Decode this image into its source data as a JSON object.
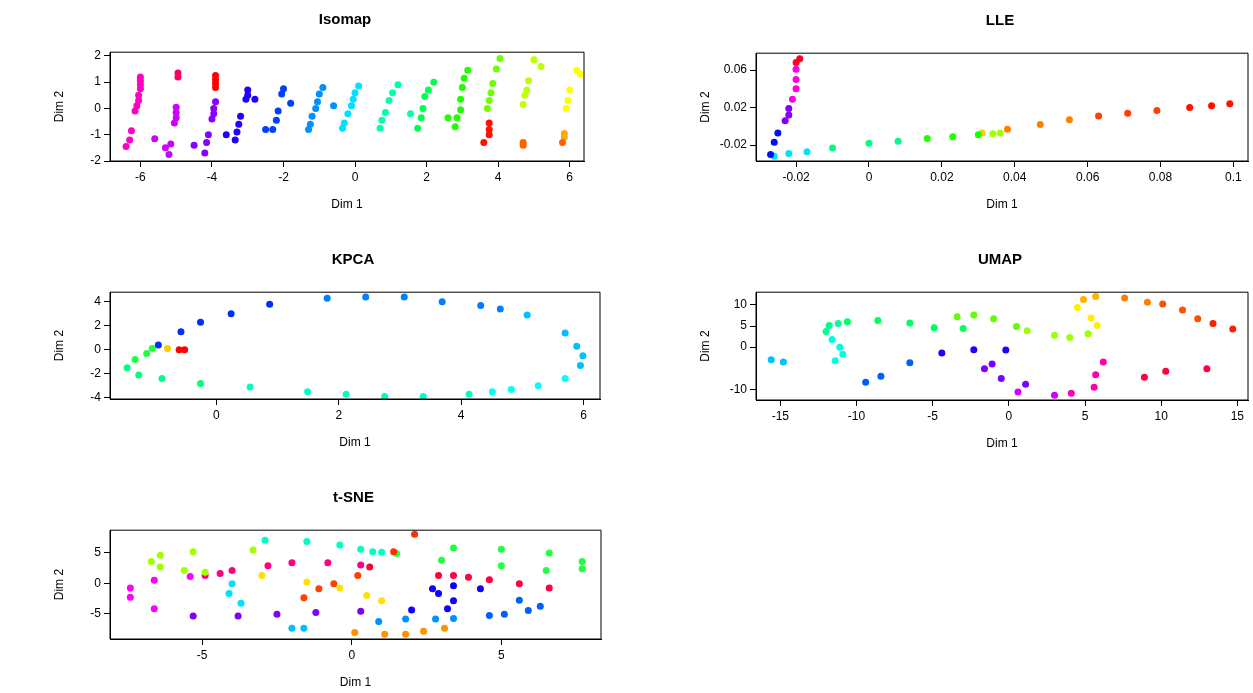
{
  "chart_data": [
    {
      "type": "scatter",
      "title": "Isomap",
      "xlabel": "Dim 1",
      "ylabel": "Dim 2",
      "marker": "circle",
      "xlim": [
        -6.85,
        6.4
      ],
      "ylim": [
        -2.0,
        2.14
      ],
      "xticks": [
        -6,
        -4,
        -2,
        0,
        2,
        4,
        6
      ],
      "yticks": [
        -2,
        -1,
        0,
        1,
        2
      ],
      "series": [
        {
          "color": "#ff00c0",
          "x": [
            -6,
            -6,
            -6,
            -6,
            -6.05,
            -6.05,
            -6.1,
            -6.15,
            -6.25,
            -6.3,
            -6.4
          ],
          "values": [
            1.2,
            1.05,
            0.9,
            0.75,
            0.5,
            0.3,
            0.1,
            -0.1,
            -0.85,
            -1.2,
            -1.45
          ]
        },
        {
          "color": "#ff0060",
          "x": [
            -4.95,
            -4.95
          ],
          "values": [
            1.35,
            1.2
          ]
        },
        {
          "color": "#cc00ff",
          "x": [
            -5.6,
            -5.3,
            -5.2,
            -5.15,
            -5.0,
            -5.0,
            -5.0,
            -5.05
          ],
          "values": [
            -1.15,
            -1.5,
            -1.75,
            -1.35,
            0.05,
            -0.15,
            -0.35,
            -0.55
          ]
        },
        {
          "color": "#ff0000",
          "x": [
            -3.9,
            -3.9,
            -3.9,
            -3.9
          ],
          "values": [
            1.25,
            1.1,
            0.95,
            0.8
          ]
        },
        {
          "color": "#8800ff",
          "x": [
            -3.9,
            -3.95,
            -3.95,
            -4.0,
            -4.1,
            -4.15,
            -4.2,
            -4.5
          ],
          "values": [
            0.25,
            0.0,
            -0.2,
            -0.4,
            -1.0,
            -1.3,
            -1.7,
            -1.4
          ]
        },
        {
          "color": "#2200ff",
          "x": [
            -3.0,
            -3.0,
            -3.05,
            -2.8,
            -3.2,
            -3.25,
            -3.3,
            -3.35,
            -3.6
          ],
          "values": [
            0.7,
            0.5,
            0.35,
            0.35,
            -0.3,
            -0.6,
            -0.9,
            -1.2,
            -1.0
          ]
        },
        {
          "color": "#0040ff",
          "x": [
            -2.0,
            -2.05,
            -1.8,
            -2.15,
            -2.2,
            -2.3,
            -2.5
          ],
          "values": [
            0.75,
            0.55,
            0.2,
            -0.1,
            -0.45,
            -0.8,
            -0.8
          ]
        },
        {
          "color": "#0090ff",
          "x": [
            -0.9,
            -1.0,
            -1.05,
            -0.6,
            -1.1,
            -1.2,
            -1.25,
            -1.3
          ],
          "values": [
            0.8,
            0.55,
            0.25,
            0.1,
            0.0,
            -0.3,
            -0.6,
            -0.8
          ]
        },
        {
          "color": "#00e0ff",
          "x": [
            0.1,
            0.0,
            -0.05,
            -0.1,
            -0.2,
            -0.3,
            -0.35
          ],
          "values": [
            0.85,
            0.6,
            0.35,
            0.1,
            -0.2,
            -0.55,
            -0.75
          ]
        },
        {
          "color": "#00ffb0",
          "x": [
            1.2,
            1.05,
            0.95,
            0.85,
            0.75,
            0.7,
            1.55
          ],
          "values": [
            0.9,
            0.6,
            0.3,
            -0.15,
            -0.45,
            -0.75,
            -0.2
          ]
        },
        {
          "color": "#00ff50",
          "x": [
            2.2,
            2.05,
            1.95,
            1.9,
            1.85,
            1.75
          ],
          "values": [
            1.0,
            0.7,
            0.45,
            0.0,
            -0.35,
            -0.75
          ]
        },
        {
          "color": "#20ff00",
          "x": [
            3.15,
            3.05,
            3.0,
            2.95,
            2.95,
            2.85,
            2.8,
            2.6
          ],
          "values": [
            1.45,
            1.15,
            0.8,
            0.35,
            -0.05,
            -0.35,
            -0.7,
            -0.35
          ]
        },
        {
          "color": "#70ff00",
          "x": [
            4.05,
            3.95,
            3.85,
            3.8,
            3.75,
            3.7
          ],
          "values": [
            1.9,
            1.5,
            0.95,
            0.6,
            0.3,
            0.0
          ]
        },
        {
          "color": "#c0ff00",
          "x": [
            5.0,
            5.2,
            4.85,
            4.8,
            4.75,
            4.7
          ],
          "values": [
            1.85,
            1.6,
            1.05,
            0.7,
            0.5,
            0.15
          ]
        },
        {
          "color": "#ffff00",
          "x": [
            6.2,
            6.3,
            6.0,
            5.95,
            5.9
          ],
          "values": [
            1.45,
            1.3,
            0.7,
            0.3,
            0.0
          ]
        },
        {
          "color": "#ff1000",
          "x": [
            3.75,
            3.75,
            3.75,
            3.6
          ],
          "values": [
            -0.55,
            -0.8,
            -1.0,
            -1.3
          ]
        },
        {
          "color": "#ff6000",
          "x": [
            4.7,
            4.7,
            5.8
          ],
          "values": [
            -1.3,
            -1.4,
            -1.3
          ]
        },
        {
          "color": "#ffaa00",
          "x": [
            5.85,
            5.85
          ],
          "values": [
            -0.95,
            -1.1
          ]
        }
      ]
    },
    {
      "type": "scatter",
      "title": "LLE",
      "xlabel": "Dim 1",
      "ylabel": "Dim 2",
      "marker": "circle",
      "xlim": [
        -0.031,
        0.104
      ],
      "ylim": [
        -0.037,
        0.078
      ],
      "xticks": [
        -0.02,
        0.0,
        0.02,
        0.04,
        0.06,
        0.08,
        0.1
      ],
      "yticks": [
        {
          "value": -0.02,
          "label": "-0.02"
        },
        {
          "value": 0.02,
          "label": "0.02"
        },
        {
          "value": 0.06,
          "label": "0.06"
        }
      ],
      "series": [
        {
          "color": "#ff0020",
          "x": [
            -0.019,
            -0.02
          ],
          "values": [
            0.072,
            0.068
          ]
        },
        {
          "color": "#ff00e0",
          "x": [
            -0.02,
            -0.02,
            -0.02,
            -0.021
          ],
          "values": [
            0.061,
            0.05,
            0.04,
            0.029
          ]
        },
        {
          "color": "#8000ff",
          "x": [
            -0.022,
            -0.022,
            -0.023
          ],
          "values": [
            0.019,
            0.012,
            0.006
          ]
        },
        {
          "color": "#0010ff",
          "x": [
            -0.025,
            -0.026,
            -0.027
          ],
          "values": [
            -0.007,
            -0.017,
            -0.03
          ]
        },
        {
          "color": "#00e0ff",
          "x": [
            -0.026,
            -0.022,
            -0.017
          ],
          "values": [
            -0.032,
            -0.029,
            -0.027
          ]
        },
        {
          "color": "#00ff80",
          "x": [
            -0.01,
            0.0,
            0.008
          ],
          "values": [
            -0.023,
            -0.018,
            -0.016
          ]
        },
        {
          "color": "#20ff00",
          "x": [
            0.016,
            0.023,
            0.03
          ],
          "values": [
            -0.013,
            -0.011,
            -0.009
          ]
        },
        {
          "color": "#a0ff00",
          "x": [
            0.034,
            0.036
          ],
          "values": [
            -0.008,
            -0.007
          ]
        },
        {
          "color": "#ffcc00",
          "x": [
            0.031
          ],
          "values": [
            -0.007
          ]
        },
        {
          "color": "#ff8000",
          "x": [
            0.038,
            0.047,
            0.055
          ],
          "values": [
            -0.003,
            0.002,
            0.007
          ]
        },
        {
          "color": "#ff4000",
          "x": [
            0.063,
            0.071,
            0.079
          ],
          "values": [
            0.011,
            0.014,
            0.017
          ]
        },
        {
          "color": "#ff1000",
          "x": [
            0.088,
            0.094,
            0.099
          ],
          "values": [
            0.02,
            0.022,
            0.024
          ]
        }
      ]
    },
    {
      "type": "scatter",
      "title": "KPCA",
      "xlabel": "Dim 1",
      "ylabel": "Dim 2",
      "marker": "circle",
      "xlim": [
        -1.74,
        6.27
      ],
      "ylim": [
        -4.1,
        4.8
      ],
      "xticks": [
        0,
        2,
        4,
        6
      ],
      "yticks": [
        -4,
        -2,
        0,
        2,
        4
      ],
      "series": [
        {
          "color": "#0030ff",
          "x": [
            -0.95,
            -0.58,
            -0.26,
            0.24,
            0.87
          ],
          "values": [
            0.4,
            1.5,
            2.3,
            3.0,
            3.8
          ]
        },
        {
          "color": "#0080ff",
          "x": [
            1.81,
            2.44,
            3.07,
            3.69,
            4.32,
            4.64
          ],
          "values": [
            4.3,
            4.4,
            4.4,
            4.0,
            3.7,
            3.4
          ]
        },
        {
          "color": "#00c0ff",
          "x": [
            5.08,
            5.7,
            5.89,
            5.99,
            5.95
          ],
          "values": [
            2.9,
            1.4,
            0.3,
            -0.5,
            -1.3
          ]
        },
        {
          "color": "#00ffff",
          "x": [
            5.7,
            5.26,
            4.82,
            4.51
          ],
          "values": [
            -2.4,
            -3.0,
            -3.3,
            -3.5
          ]
        },
        {
          "color": "#00ffc0",
          "x": [
            4.13,
            3.38,
            2.75,
            2.12,
            1.49,
            0.55
          ],
          "values": [
            -3.7,
            -3.9,
            -3.9,
            -3.7,
            -3.5,
            -3.1
          ]
        },
        {
          "color": "#00ff80",
          "x": [
            -0.26,
            -0.89,
            -1.27,
            -1.46
          ],
          "values": [
            -2.8,
            -2.4,
            -2.1,
            -1.5
          ]
        },
        {
          "color": "#20ff40",
          "x": [
            -1.33,
            -1.14,
            -1.05
          ],
          "values": [
            -0.8,
            -0.3,
            0.1
          ]
        },
        {
          "color": "#ffcc00",
          "x": [
            -0.8
          ],
          "values": [
            0.1
          ]
        },
        {
          "color": "#ff0000",
          "x": [
            -0.61,
            -0.52
          ],
          "values": [
            0.0,
            0.0
          ]
        }
      ]
    },
    {
      "type": "scatter",
      "title": "UMAP",
      "xlabel": "Dim 1",
      "ylabel": "Dim 2",
      "marker": "circle",
      "xlim": [
        -16.6,
        15.7
      ],
      "ylim": [
        -12.5,
        13
      ],
      "xticks": [
        -15,
        -10,
        -5,
        0,
        5,
        10,
        15
      ],
      "yticks": [
        -10,
        0,
        5,
        10
      ],
      "series": [
        {
          "color": "#00c0ff",
          "x": [
            -15.6,
            -14.8
          ],
          "values": [
            -3,
            -3.5
          ]
        },
        {
          "color": "#00ffe0",
          "x": [
            -11.4,
            -10.9,
            -11.1,
            -11.6
          ],
          "values": [
            -3.2,
            -1.7,
            0,
            1.8
          ]
        },
        {
          "color": "#00ff90",
          "x": [
            -12,
            -11.8,
            -11.2
          ],
          "values": [
            3.7,
            5.1,
            5.6
          ]
        },
        {
          "color": "#00ff60",
          "x": [
            -10.6,
            -8.6,
            -6.5,
            -4.9,
            -3
          ],
          "values": [
            6,
            6.3,
            5.7,
            4.6,
            4.4
          ]
        },
        {
          "color": "#60ff00",
          "x": [
            -3.4,
            -2.3,
            -1,
            0.5
          ],
          "values": [
            7.2,
            7.6,
            6.7,
            4.9
          ]
        },
        {
          "color": "#a0ff00",
          "x": [
            1.2,
            3,
            4,
            5.2
          ],
          "values": [
            3.9,
            2.8,
            2.3,
            3.2
          ]
        },
        {
          "color": "#ffee00",
          "x": [
            5.8,
            5.4,
            4.5
          ],
          "values": [
            5.1,
            6.9,
            9.4
          ]
        },
        {
          "color": "#ffb000",
          "x": [
            4.9,
            5.7
          ],
          "values": [
            11.3,
            12
          ]
        },
        {
          "color": "#ff8000",
          "x": [
            7.6,
            9.1
          ],
          "values": [
            11.6,
            10.6
          ]
        },
        {
          "color": "#ff5000",
          "x": [
            10.1,
            11.4,
            12.4
          ],
          "values": [
            10.2,
            8.8,
            6.7
          ]
        },
        {
          "color": "#ff2000",
          "x": [
            13.4,
            14.7
          ],
          "values": [
            5.6,
            4.3
          ]
        },
        {
          "color": "#ff0040",
          "x": [
            8.9,
            10.3,
            13
          ],
          "values": [
            -7.1,
            -5.7,
            -5.1
          ]
        },
        {
          "color": "#ff00b0",
          "x": [
            4.1,
            5.6,
            5.7,
            6.2
          ],
          "values": [
            -10.9,
            -9.5,
            -6.5,
            -3.5
          ]
        },
        {
          "color": "#d000ff",
          "x": [
            0.6,
            3
          ],
          "values": [
            -10.6,
            -11.4
          ]
        },
        {
          "color": "#8000ff",
          "x": [
            -1.1,
            -1.6,
            -0.5,
            1.1
          ],
          "values": [
            -4,
            -5.1,
            -7.4,
            -8.8
          ]
        },
        {
          "color": "#2000ff",
          "x": [
            -0.2,
            -2.3,
            -4.4
          ],
          "values": [
            -0.7,
            -0.6,
            -1.4
          ]
        },
        {
          "color": "#0060ff",
          "x": [
            -6.5,
            -8.4,
            -9.4
          ],
          "values": [
            -3.7,
            -6.9,
            -8.3
          ]
        }
      ]
    },
    {
      "type": "scatter",
      "title": "t-SNE",
      "xlabel": "Dim 1",
      "ylabel": "Dim 2",
      "marker": "circle",
      "xlim": [
        -8.08,
        8.33
      ],
      "ylim": [
        -9.19,
        8.75
      ],
      "xticks": [
        -5,
        0,
        5
      ],
      "yticks": [
        -5,
        0,
        5
      ],
      "series": [
        {
          "color": "#a0ff00",
          "x": [
            -3.3,
            -5.3,
            -6.4,
            -6.7,
            -6.4,
            -5.6,
            -4.9
          ],
          "values": [
            5.5,
            5.2,
            4.6,
            3.6,
            2.7,
            2.1,
            1.8
          ]
        },
        {
          "color": "#ff0080",
          "x": [
            -4.9,
            -4.4,
            -4.0,
            -2.8,
            -2.0,
            -0.8,
            0.3
          ],
          "values": [
            1.3,
            1.6,
            2.1,
            2.9,
            3.4,
            3.4,
            3.0
          ]
        },
        {
          "color": "#ff00ff",
          "x": [
            -5.4,
            -6.6,
            -7.4,
            -7.4,
            -6.6
          ],
          "values": [
            1.1,
            0.5,
            -0.8,
            -2.3,
            -4.2
          ]
        },
        {
          "color": "#8000ff",
          "x": [
            -5.3,
            -3.8,
            -2.5,
            -1.2,
            0.3
          ],
          "values": [
            -5.4,
            -5.4,
            -5.1,
            -4.8,
            -4.6
          ]
        },
        {
          "color": "#00ffc0",
          "x": [
            -2.9,
            -1.5,
            -0.4,
            0.3,
            0.7,
            1.0
          ],
          "values": [
            7.1,
            6.9,
            6.3,
            5.6,
            5.2,
            5.1
          ]
        },
        {
          "color": "#00e0ff",
          "x": [
            -4.0,
            -4.1,
            -3.7
          ],
          "values": [
            -0.1,
            -1.7,
            -3.3
          ]
        },
        {
          "color": "#00c0ff",
          "x": [
            -2.0,
            -1.6
          ],
          "values": [
            -7.4,
            -7.4
          ]
        },
        {
          "color": "#ffe000",
          "x": [
            -3.0,
            -1.5,
            -0.4,
            0.5,
            1.0
          ],
          "values": [
            1.3,
            0.2,
            -0.8,
            -2.0,
            -2.9
          ]
        },
        {
          "color": "#ff4000",
          "x": [
            -1.6,
            -1.1,
            -0.6,
            0.2
          ],
          "values": [
            -2.4,
            -0.9,
            -0.1,
            1.3
          ]
        },
        {
          "color": "#ff3000",
          "x": [
            1.4,
            2.1
          ],
          "values": [
            5.2,
            8.1
          ]
        },
        {
          "color": "#20ff40",
          "x": [
            1.5,
            3.0,
            5.0,
            6.5,
            7.7,
            7.7,
            6.6,
            5.0,
            3.4
          ],
          "values": [
            4.9,
            3.8,
            2.9,
            2.1,
            2.4,
            3.6,
            5.0,
            5.6,
            5.8
          ]
        },
        {
          "color": "#ff0040",
          "x": [
            0.6,
            2.9,
            3.4,
            3.9,
            4.6,
            5.6,
            6.6
          ],
          "values": [
            2.7,
            1.3,
            1.3,
            1.0,
            0.6,
            -0.1,
            -0.8
          ]
        },
        {
          "color": "#1000ff",
          "x": [
            2.0,
            3.2,
            3.4,
            2.9,
            2.7,
            3.4,
            4.3
          ],
          "values": [
            -4.4,
            -4.2,
            -2.9,
            -1.7,
            -0.9,
            -0.4,
            -0.9
          ]
        },
        {
          "color": "#0060ff",
          "x": [
            4.6,
            5.1,
            5.9,
            6.3,
            5.6
          ],
          "values": [
            -5.3,
            -5.1,
            -4.5,
            -3.8,
            -2.8
          ]
        },
        {
          "color": "#0090ff",
          "x": [
            0.9,
            1.8,
            2.8,
            3.4
          ],
          "values": [
            -6.3,
            -5.9,
            -5.9,
            -5.8
          ]
        },
        {
          "color": "#ff9000",
          "x": [
            0.1,
            1.1,
            1.8,
            2.4,
            3.1
          ],
          "values": [
            -8.1,
            -8.4,
            -8.4,
            -7.9,
            -7.4
          ]
        }
      ]
    }
  ]
}
